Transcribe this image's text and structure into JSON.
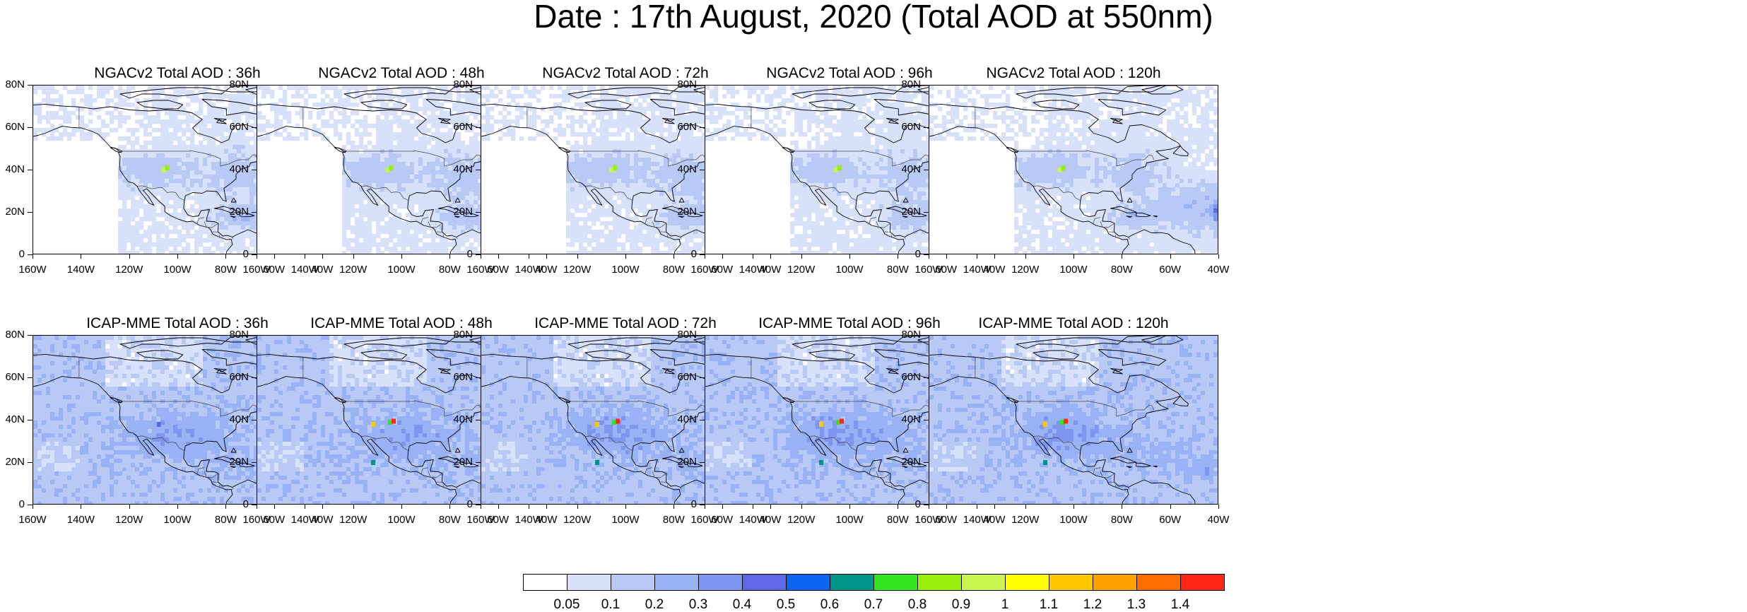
{
  "title": "Date : 17th August, 2020 (Total AOD at 550nm)",
  "lat_labels": [
    "80N",
    "60N",
    "40N",
    "20N",
    "0"
  ],
  "lon_labels": [
    "160W",
    "140W",
    "120W",
    "100W",
    "80W",
    "60W",
    "40W"
  ],
  "panels": [
    {
      "model": "NGACv2",
      "label": "NGACv2 Total AOD : 36h"
    },
    {
      "model": "NGACv2",
      "label": "NGACv2 Total AOD : 48h"
    },
    {
      "model": "NGACv2",
      "label": "NGACv2 Total AOD : 72h"
    },
    {
      "model": "NGACv2",
      "label": "NGACv2 Total AOD : 96h"
    },
    {
      "model": "NGACv2",
      "label": "NGACv2 Total AOD : 120h"
    },
    {
      "model": "ICAP-MME",
      "label": "ICAP-MME Total AOD : 36h"
    },
    {
      "model": "ICAP-MME",
      "label": "ICAP-MME Total AOD : 48h"
    },
    {
      "model": "ICAP-MME",
      "label": "ICAP-MME Total AOD : 72h"
    },
    {
      "model": "ICAP-MME",
      "label": "ICAP-MME Total AOD : 96h"
    },
    {
      "model": "ICAP-MME",
      "label": "ICAP-MME Total AOD : 120h"
    }
  ],
  "colorbar": {
    "colors": [
      "#ffffff",
      "#d7e1fa",
      "#b9c9f5",
      "#98b2f5",
      "#7f96f0",
      "#5f68e6",
      "#0a64f0",
      "#00968c",
      "#32e61e",
      "#96f00a",
      "#c8f550",
      "#ffff00",
      "#ffc800",
      "#ffa000",
      "#ff6e00",
      "#ff2814"
    ],
    "labels": [
      "0.05",
      "0.1",
      "0.2",
      "0.3",
      "0.4",
      "0.5",
      "0.6",
      "0.7",
      "0.8",
      "0.9",
      "1",
      "1.1",
      "1.2",
      "1.3",
      "1.4"
    ]
  }
}
